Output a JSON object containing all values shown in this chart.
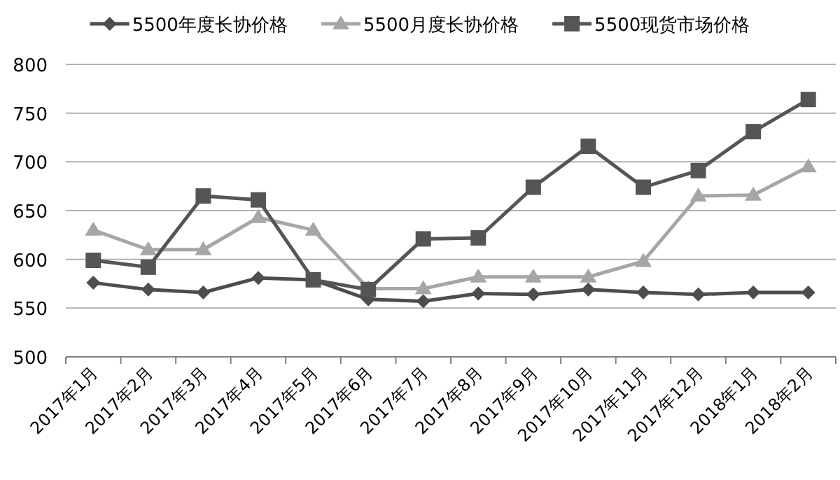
{
  "chart_data": {
    "type": "line",
    "categories": [
      "2017年1月",
      "2017年2月",
      "2017年3月",
      "2017年4月",
      "2017年5月",
      "2017年6月",
      "2017年7月",
      "2017年8月",
      "2017年9月",
      "2017年10月",
      "2017年11月",
      "2017年12月",
      "2018年1月",
      "2018年2月"
    ],
    "series": [
      {
        "name": "5500年度长协价格",
        "color": "#4d4d4d",
        "marker": "diamond",
        "values": [
          576,
          569,
          566,
          581,
          579,
          559,
          557,
          565,
          564,
          569,
          566,
          564,
          566,
          566
        ]
      },
      {
        "name": "5500月度长协价格",
        "color": "#a6a6a6",
        "marker": "triangle",
        "values": [
          630,
          610,
          610,
          643,
          630,
          570,
          570,
          582,
          582,
          582,
          598,
          665,
          666,
          695
        ]
      },
      {
        "name": "5500现货市场价格",
        "color": "#555555",
        "marker": "square",
        "values": [
          599,
          592,
          665,
          661,
          579,
          569,
          621,
          622,
          674,
          716,
          674,
          691,
          731,
          764
        ]
      }
    ],
    "ylim": [
      500,
      800
    ],
    "yticks": [
      500,
      550,
      600,
      650,
      700,
      750,
      800
    ],
    "grid": "y",
    "legend": "top",
    "line_style": "solid"
  }
}
